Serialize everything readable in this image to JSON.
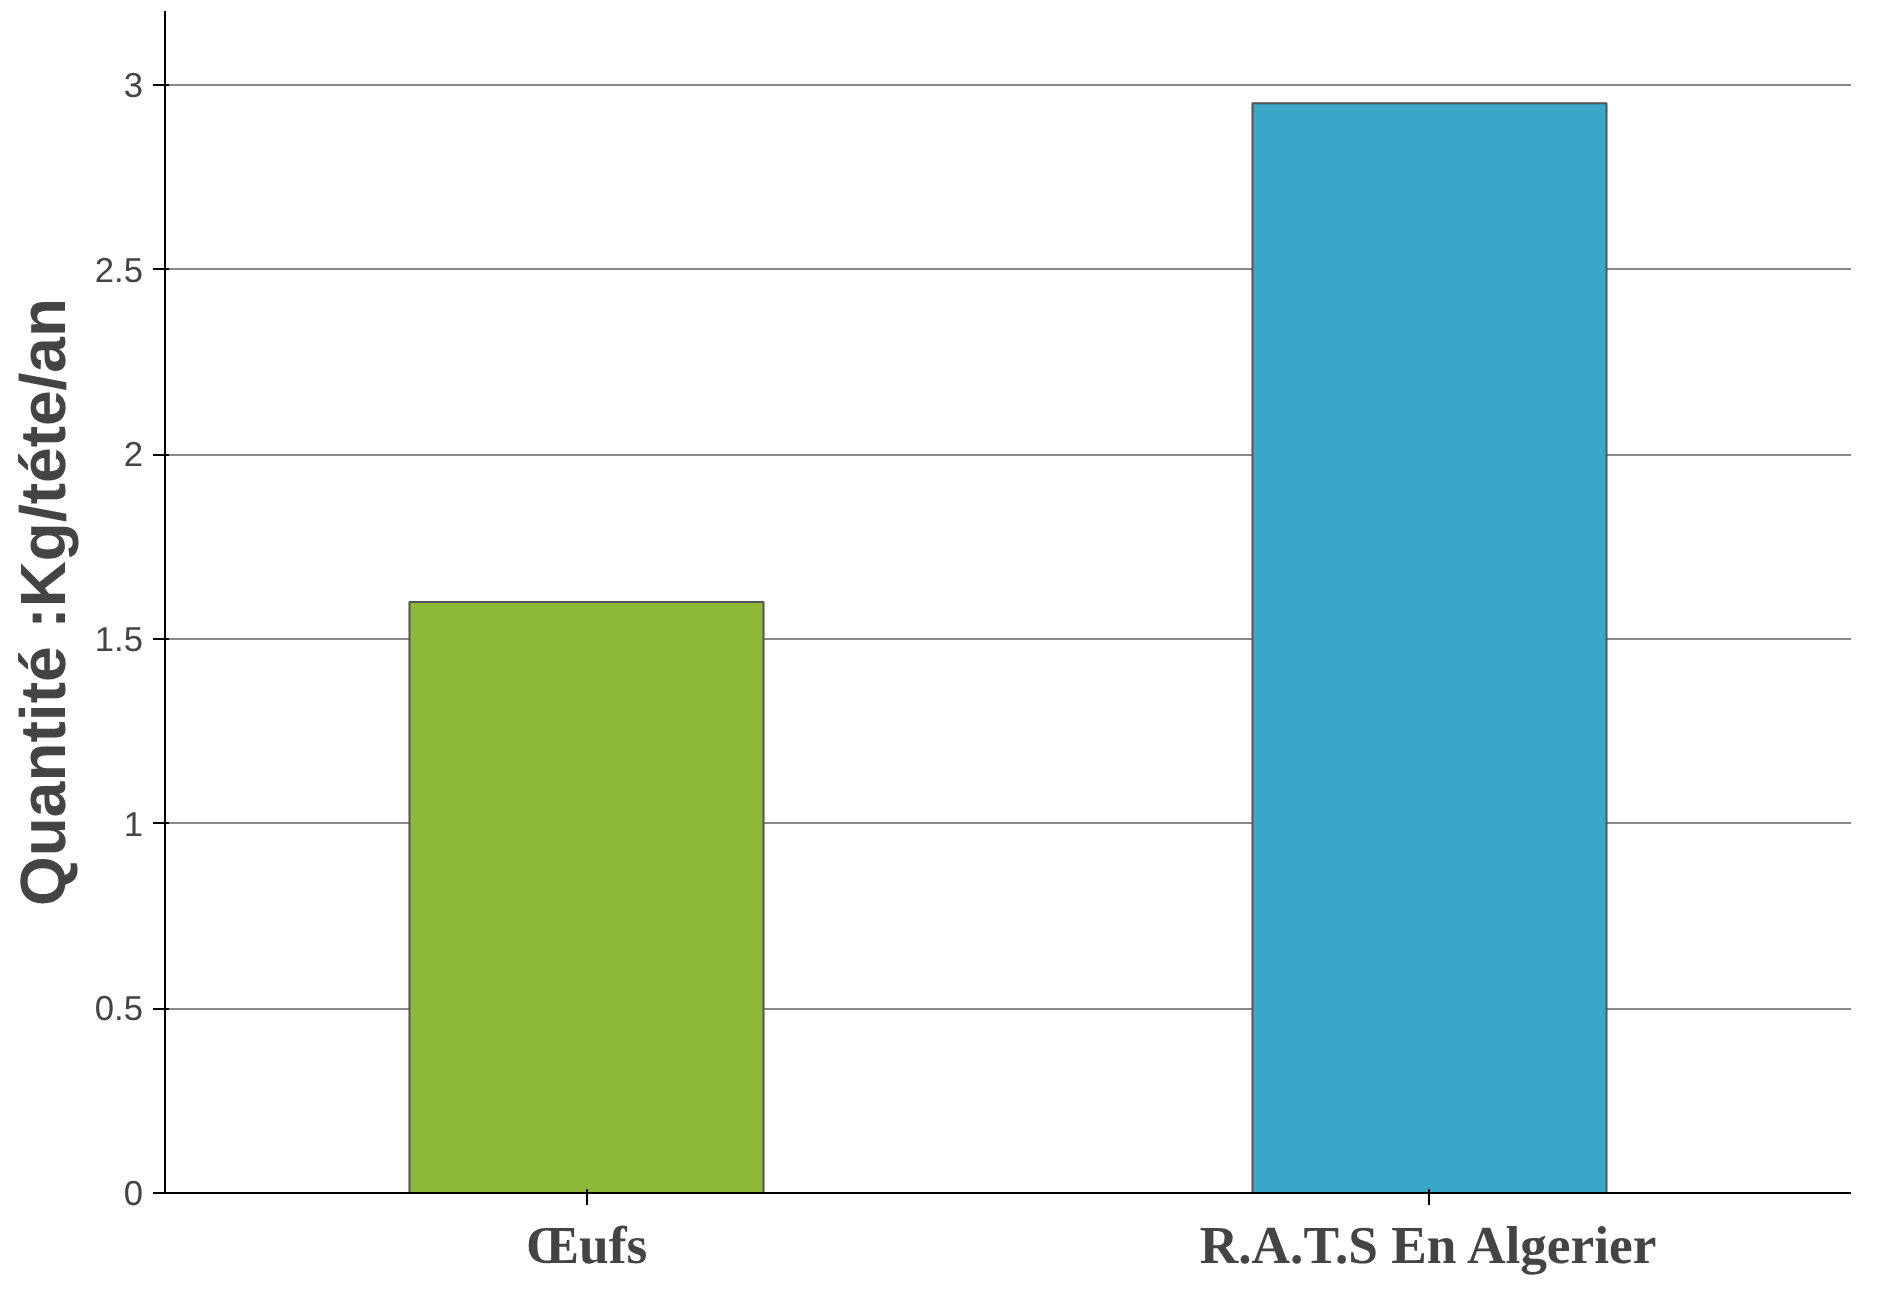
{
  "chart_data": {
    "type": "bar",
    "ylabel": "Quantité :Kg/téte/an",
    "categories": [
      "Œufs",
      "R.A.T.S En Algerier"
    ],
    "values": [
      1.6,
      2.95
    ],
    "colors": [
      "#8db83a",
      "#3aa6c8"
    ],
    "ylim": [
      0,
      3.2
    ],
    "yticks": [
      0,
      0.5,
      1,
      1.5,
      2,
      2.5,
      3
    ],
    "grid": "y"
  }
}
